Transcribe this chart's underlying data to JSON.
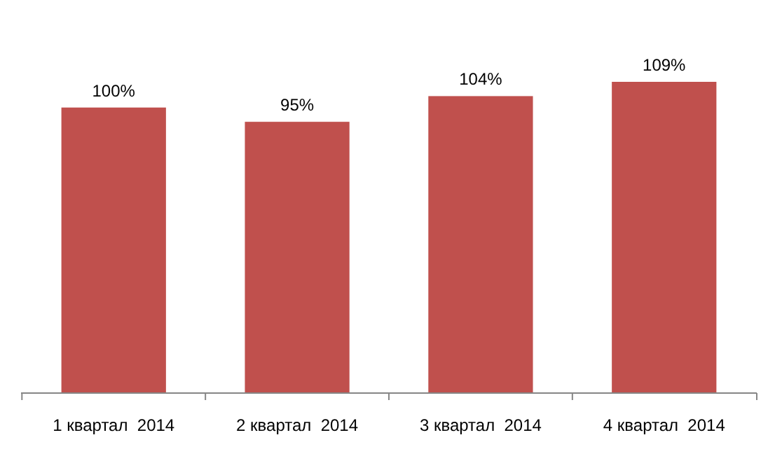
{
  "chart_data": {
    "type": "bar",
    "categories": [
      "1 квартал  2014",
      "2 квартал  2014",
      "3 квартал  2014",
      "4 квартал  2014"
    ],
    "values": [
      100,
      95,
      104,
      109
    ],
    "value_labels": [
      "100%",
      "95%",
      "104%",
      "109%"
    ],
    "color": "#c0504d"
  }
}
